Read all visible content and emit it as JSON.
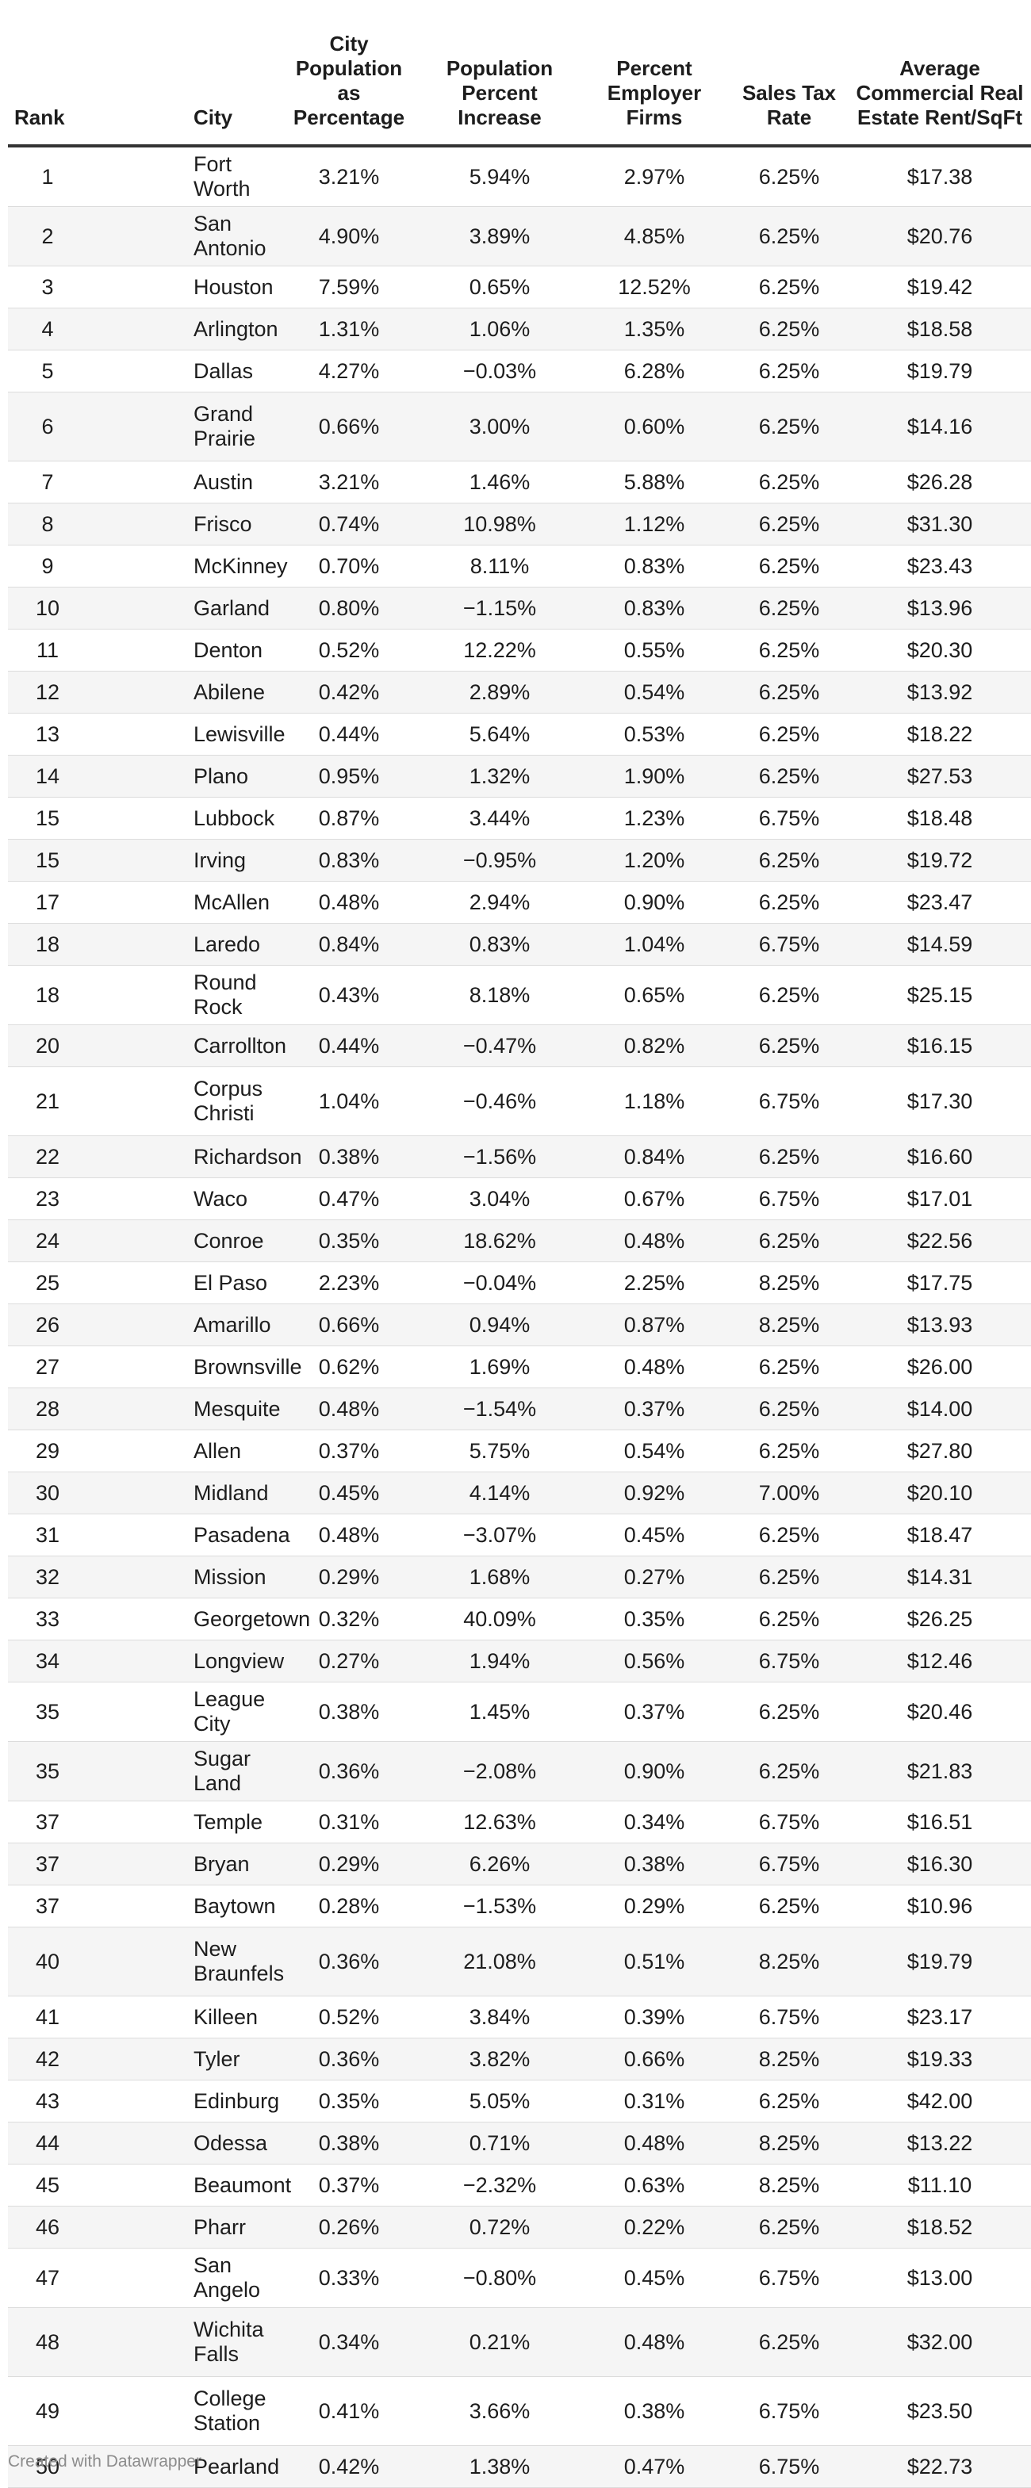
{
  "chart_data": {
    "type": "table",
    "columns": [
      {
        "key": "rank",
        "label": "Rank"
      },
      {
        "key": "city",
        "label": "City"
      },
      {
        "key": "pop_pct",
        "label": "City Population as Percentage"
      },
      {
        "key": "pop_increase",
        "label": "Population Percent Increase"
      },
      {
        "key": "employer",
        "label": "Percent Employer Firms"
      },
      {
        "key": "tax",
        "label": "Sales Tax Rate"
      },
      {
        "key": "rent",
        "label": "Average Commercial Real Estate Rent/SqFt"
      }
    ],
    "rows": [
      {
        "rank": "1",
        "city": "Fort Worth",
        "pop_pct": "3.21%",
        "pop_increase": "5.94%",
        "employer": "2.97%",
        "tax": "6.25%",
        "rent": "$17.38"
      },
      {
        "rank": "2",
        "city": "San Antonio",
        "pop_pct": "4.90%",
        "pop_increase": "3.89%",
        "employer": "4.85%",
        "tax": "6.25%",
        "rent": "$20.76"
      },
      {
        "rank": "3",
        "city": "Houston",
        "pop_pct": "7.59%",
        "pop_increase": "0.65%",
        "employer": "12.52%",
        "tax": "6.25%",
        "rent": "$19.42"
      },
      {
        "rank": "4",
        "city": "Arlington",
        "pop_pct": "1.31%",
        "pop_increase": "1.06%",
        "employer": "1.35%",
        "tax": "6.25%",
        "rent": "$18.58"
      },
      {
        "rank": "5",
        "city": "Dallas",
        "pop_pct": "4.27%",
        "pop_increase": "−0.03%",
        "employer": "6.28%",
        "tax": "6.25%",
        "rent": "$19.79"
      },
      {
        "rank": "6",
        "city": "Grand Prairie",
        "pop_pct": "0.66%",
        "pop_increase": "3.00%",
        "employer": "0.60%",
        "tax": "6.25%",
        "rent": "$14.16"
      },
      {
        "rank": "7",
        "city": "Austin",
        "pop_pct": "3.21%",
        "pop_increase": "1.46%",
        "employer": "5.88%",
        "tax": "6.25%",
        "rent": "$26.28"
      },
      {
        "rank": "8",
        "city": "Frisco",
        "pop_pct": "0.74%",
        "pop_increase": "10.98%",
        "employer": "1.12%",
        "tax": "6.25%",
        "rent": "$31.30"
      },
      {
        "rank": "9",
        "city": "McKinney",
        "pop_pct": "0.70%",
        "pop_increase": "8.11%",
        "employer": "0.83%",
        "tax": "6.25%",
        "rent": "$23.43"
      },
      {
        "rank": "10",
        "city": "Garland",
        "pop_pct": "0.80%",
        "pop_increase": "−1.15%",
        "employer": "0.83%",
        "tax": "6.25%",
        "rent": "$13.96"
      },
      {
        "rank": "11",
        "city": "Denton",
        "pop_pct": "0.52%",
        "pop_increase": "12.22%",
        "employer": "0.55%",
        "tax": "6.25%",
        "rent": "$20.30"
      },
      {
        "rank": "12",
        "city": "Abilene",
        "pop_pct": "0.42%",
        "pop_increase": "2.89%",
        "employer": "0.54%",
        "tax": "6.25%",
        "rent": "$13.92"
      },
      {
        "rank": "13",
        "city": "Lewisville",
        "pop_pct": "0.44%",
        "pop_increase": "5.64%",
        "employer": "0.53%",
        "tax": "6.25%",
        "rent": "$18.22"
      },
      {
        "rank": "14",
        "city": "Plano",
        "pop_pct": "0.95%",
        "pop_increase": "1.32%",
        "employer": "1.90%",
        "tax": "6.25%",
        "rent": "$27.53"
      },
      {
        "rank": "15",
        "city": "Lubbock",
        "pop_pct": "0.87%",
        "pop_increase": "3.44%",
        "employer": "1.23%",
        "tax": "6.75%",
        "rent": "$18.48"
      },
      {
        "rank": "15",
        "city": "Irving",
        "pop_pct": "0.83%",
        "pop_increase": "−0.95%",
        "employer": "1.20%",
        "tax": "6.25%",
        "rent": "$19.72"
      },
      {
        "rank": "17",
        "city": "McAllen",
        "pop_pct": "0.48%",
        "pop_increase": "2.94%",
        "employer": "0.90%",
        "tax": "6.25%",
        "rent": "$23.47"
      },
      {
        "rank": "18",
        "city": "Laredo",
        "pop_pct": "0.84%",
        "pop_increase": "0.83%",
        "employer": "1.04%",
        "tax": "6.75%",
        "rent": "$14.59"
      },
      {
        "rank": "18",
        "city": "Round Rock",
        "pop_pct": "0.43%",
        "pop_increase": "8.18%",
        "employer": "0.65%",
        "tax": "6.25%",
        "rent": "$25.15"
      },
      {
        "rank": "20",
        "city": "Carrollton",
        "pop_pct": "0.44%",
        "pop_increase": "−0.47%",
        "employer": "0.82%",
        "tax": "6.25%",
        "rent": "$16.15"
      },
      {
        "rank": "21",
        "city": "Corpus Christi",
        "pop_pct": "1.04%",
        "pop_increase": "−0.46%",
        "employer": "1.18%",
        "tax": "6.75%",
        "rent": "$17.30"
      },
      {
        "rank": "22",
        "city": "Richardson",
        "pop_pct": "0.38%",
        "pop_increase": "−1.56%",
        "employer": "0.84%",
        "tax": "6.25%",
        "rent": "$16.60"
      },
      {
        "rank": "23",
        "city": "Waco",
        "pop_pct": "0.47%",
        "pop_increase": "3.04%",
        "employer": "0.67%",
        "tax": "6.75%",
        "rent": "$17.01"
      },
      {
        "rank": "24",
        "city": "Conroe",
        "pop_pct": "0.35%",
        "pop_increase": "18.62%",
        "employer": "0.48%",
        "tax": "6.25%",
        "rent": "$22.56"
      },
      {
        "rank": "25",
        "city": "El Paso",
        "pop_pct": "2.23%",
        "pop_increase": "−0.04%",
        "employer": "2.25%",
        "tax": "8.25%",
        "rent": "$17.75"
      },
      {
        "rank": "26",
        "city": "Amarillo",
        "pop_pct": "0.66%",
        "pop_increase": "0.94%",
        "employer": "0.87%",
        "tax": "8.25%",
        "rent": "$13.93"
      },
      {
        "rank": "27",
        "city": "Brownsville",
        "pop_pct": "0.62%",
        "pop_increase": "1.69%",
        "employer": "0.48%",
        "tax": "6.25%",
        "rent": "$26.00"
      },
      {
        "rank": "28",
        "city": "Mesquite",
        "pop_pct": "0.48%",
        "pop_increase": "−1.54%",
        "employer": "0.37%",
        "tax": "6.25%",
        "rent": "$14.00"
      },
      {
        "rank": "29",
        "city": "Allen",
        "pop_pct": "0.37%",
        "pop_increase": "5.75%",
        "employer": "0.54%",
        "tax": "6.25%",
        "rent": "$27.80"
      },
      {
        "rank": "30",
        "city": "Midland",
        "pop_pct": "0.45%",
        "pop_increase": "4.14%",
        "employer": "0.92%",
        "tax": "7.00%",
        "rent": "$20.10"
      },
      {
        "rank": "31",
        "city": "Pasadena",
        "pop_pct": "0.48%",
        "pop_increase": "−3.07%",
        "employer": "0.45%",
        "tax": "6.25%",
        "rent": "$18.47"
      },
      {
        "rank": "32",
        "city": "Mission",
        "pop_pct": "0.29%",
        "pop_increase": "1.68%",
        "employer": "0.27%",
        "tax": "6.25%",
        "rent": "$14.31"
      },
      {
        "rank": "33",
        "city": "Georgetown",
        "pop_pct": "0.32%",
        "pop_increase": "40.09%",
        "employer": "0.35%",
        "tax": "6.25%",
        "rent": "$26.25"
      },
      {
        "rank": "34",
        "city": "Longview",
        "pop_pct": "0.27%",
        "pop_increase": "1.94%",
        "employer": "0.56%",
        "tax": "6.75%",
        "rent": "$12.46"
      },
      {
        "rank": "35",
        "city": "League City",
        "pop_pct": "0.38%",
        "pop_increase": "1.45%",
        "employer": "0.37%",
        "tax": "6.25%",
        "rent": "$20.46"
      },
      {
        "rank": "35",
        "city": "Sugar Land",
        "pop_pct": "0.36%",
        "pop_increase": "−2.08%",
        "employer": "0.90%",
        "tax": "6.25%",
        "rent": "$21.83"
      },
      {
        "rank": "37",
        "city": "Temple",
        "pop_pct": "0.31%",
        "pop_increase": "12.63%",
        "employer": "0.34%",
        "tax": "6.75%",
        "rent": "$16.51"
      },
      {
        "rank": "37",
        "city": "Bryan",
        "pop_pct": "0.29%",
        "pop_increase": "6.26%",
        "employer": "0.38%",
        "tax": "6.75%",
        "rent": "$16.30"
      },
      {
        "rank": "37",
        "city": "Baytown",
        "pop_pct": "0.28%",
        "pop_increase": "−1.53%",
        "employer": "0.29%",
        "tax": "6.25%",
        "rent": "$10.96"
      },
      {
        "rank": "40",
        "city": "New Braunfels",
        "pop_pct": "0.36%",
        "pop_increase": "21.08%",
        "employer": "0.51%",
        "tax": "8.25%",
        "rent": "$19.79"
      },
      {
        "rank": "41",
        "city": "Killeen",
        "pop_pct": "0.52%",
        "pop_increase": "3.84%",
        "employer": "0.39%",
        "tax": "6.75%",
        "rent": "$23.17"
      },
      {
        "rank": "42",
        "city": "Tyler",
        "pop_pct": "0.36%",
        "pop_increase": "3.82%",
        "employer": "0.66%",
        "tax": "8.25%",
        "rent": "$19.33"
      },
      {
        "rank": "43",
        "city": "Edinburg",
        "pop_pct": "0.35%",
        "pop_increase": "5.05%",
        "employer": "0.31%",
        "tax": "6.25%",
        "rent": "$42.00"
      },
      {
        "rank": "44",
        "city": "Odessa",
        "pop_pct": "0.38%",
        "pop_increase": "0.71%",
        "employer": "0.48%",
        "tax": "8.25%",
        "rent": "$13.22"
      },
      {
        "rank": "45",
        "city": "Beaumont",
        "pop_pct": "0.37%",
        "pop_increase": "−2.32%",
        "employer": "0.63%",
        "tax": "8.25%",
        "rent": "$11.10"
      },
      {
        "rank": "46",
        "city": "Pharr",
        "pop_pct": "0.26%",
        "pop_increase": "0.72%",
        "employer": "0.22%",
        "tax": "6.25%",
        "rent": "$18.52"
      },
      {
        "rank": "47",
        "city": "San Angelo",
        "pop_pct": "0.33%",
        "pop_increase": "−0.80%",
        "employer": "0.45%",
        "tax": "6.75%",
        "rent": "$13.00"
      },
      {
        "rank": "48",
        "city": "Wichita Falls",
        "pop_pct": "0.34%",
        "pop_increase": "0.21%",
        "employer": "0.48%",
        "tax": "6.25%",
        "rent": "$32.00"
      },
      {
        "rank": "49",
        "city": "College Station",
        "pop_pct": "0.41%",
        "pop_increase": "3.66%",
        "employer": "0.38%",
        "tax": "6.75%",
        "rent": "$23.50"
      },
      {
        "rank": "50",
        "city": "Pearland",
        "pop_pct": "0.42%",
        "pop_increase": "1.38%",
        "employer": "0.47%",
        "tax": "6.75%",
        "rent": "$22.73"
      }
    ]
  },
  "footer": {
    "credit": "Created with Datawrapper"
  }
}
